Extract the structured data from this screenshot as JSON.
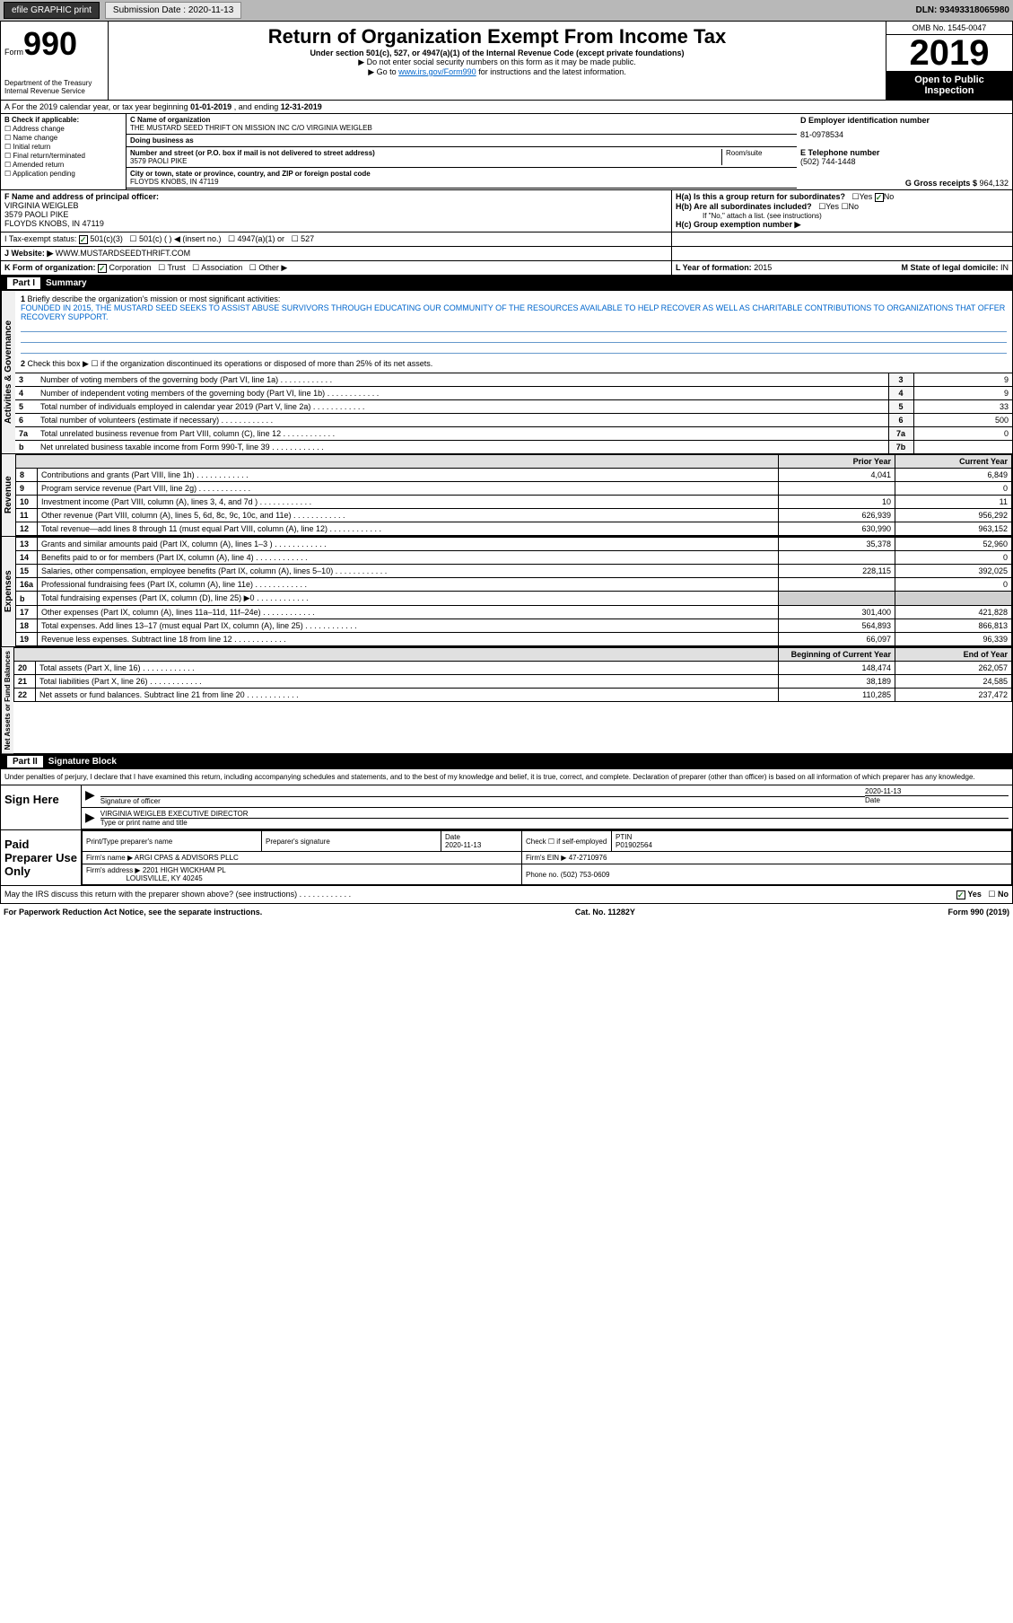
{
  "topbar": {
    "efile": "efile GRAPHIC print",
    "sub_label": "Submission Date : 2020-11-13",
    "dln": "DLN: 93493318065980"
  },
  "header": {
    "form_word": "Form",
    "form_num": "990",
    "title": "Return of Organization Exempt From Income Tax",
    "subtitle": "Under section 501(c), 527, or 4947(a)(1) of the Internal Revenue Code (except private foundations)",
    "arrow1": "▶ Do not enter social security numbers on this form as it may be made public.",
    "arrow2_pre": "▶ Go to ",
    "arrow2_link": "www.irs.gov/Form990",
    "arrow2_post": " for instructions and the latest information.",
    "omb": "OMB No. 1545-0047",
    "year": "2019",
    "open": "Open to Public Inspection",
    "dept": "Department of the Treasury\nInternal Revenue Service"
  },
  "period": {
    "text_pre": "A For the 2019 calendar year, or tax year beginning ",
    "begin": "01-01-2019",
    "mid": " , and ending ",
    "end": "12-31-2019"
  },
  "colB": {
    "header": "B Check if applicable:",
    "items": [
      "Address change",
      "Name change",
      "Initial return",
      "Final return/terminated",
      "Amended return",
      "Application pending"
    ]
  },
  "colC": {
    "name_lbl": "C Name of organization",
    "name": "THE MUSTARD SEED THRIFT ON MISSION INC C/O VIRGINIA WEIGLEB",
    "dba_lbl": "Doing business as",
    "addr_lbl": "Number and street (or P.O. box if mail is not delivered to street address)",
    "room": "Room/suite",
    "addr": "3579 PAOLI PIKE",
    "city_lbl": "City or town, state or province, country, and ZIP or foreign postal code",
    "city": "FLOYDS KNOBS, IN  47119"
  },
  "colD": {
    "d_lbl": "D Employer identification number",
    "ein": "81-0978534",
    "e_lbl": "E Telephone number",
    "phone": "(502) 744-1448",
    "g_lbl": "G Gross receipts $ ",
    "g_val": "964,132"
  },
  "rowF": {
    "f_lbl": "F Name and address of principal officer:",
    "officer": "VIRGINIA WEIGLEB\n3579 PAOLI PIKE\nFLOYDS KNOBS, IN  47119",
    "tax_lbl": "I Tax-exempt status:",
    "t501c3": "501(c)(3)",
    "t501c": "501(c) (  ) ◀ (insert no.)",
    "t4947": "4947(a)(1) or",
    "t527": "527",
    "web_lbl": "J Website: ▶",
    "web": "WWW.MUSTARDSEEDTHRIFT.COM",
    "ha_lbl": "H(a) Is this a group return for subordinates?",
    "hb_lbl": "H(b) Are all subordinates included?",
    "hb_note": "If \"No,\" attach a list. (see instructions)",
    "hc_lbl": "H(c) Group exemption number ▶",
    "yes": "Yes",
    "no": "No"
  },
  "rowK": {
    "k_lbl": "K Form of organization:",
    "corp": "Corporation",
    "trust": "Trust",
    "assoc": "Association",
    "other": "Other ▶",
    "l_lbl": "L Year of formation: ",
    "l_val": "2015",
    "m_lbl": "M State of legal domicile: ",
    "m_val": "IN"
  },
  "part1": {
    "label": "Part I",
    "title": "Summary"
  },
  "governance": {
    "side": "Activities & Governance",
    "q1": "Briefly describe the organization's mission or most significant activities:",
    "mission": "FOUNDED IN 2015, THE MUSTARD SEED SEEKS TO ASSIST ABUSE SURVIVORS THROUGH EDUCATING OUR COMMUNITY OF THE RESOURCES AVAILABLE TO HELP RECOVER AS WELL AS CHARITABLE CONTRIBUTIONS TO ORGANIZATIONS THAT OFFER RECOVERY SUPPORT.",
    "q2": "Check this box ▶ ☐ if the organization discontinued its operations or disposed of more than 25% of its net assets.",
    "rows": [
      {
        "n": "3",
        "t": "Number of voting members of the governing body (Part VI, line 1a)",
        "b": "3",
        "v": "9"
      },
      {
        "n": "4",
        "t": "Number of independent voting members of the governing body (Part VI, line 1b)",
        "b": "4",
        "v": "9"
      },
      {
        "n": "5",
        "t": "Total number of individuals employed in calendar year 2019 (Part V, line 2a)",
        "b": "5",
        "v": "33"
      },
      {
        "n": "6",
        "t": "Total number of volunteers (estimate if necessary)",
        "b": "6",
        "v": "500"
      },
      {
        "n": "7a",
        "t": "Total unrelated business revenue from Part VIII, column (C), line 12",
        "b": "7a",
        "v": "0"
      },
      {
        "n": "b",
        "t": "Net unrelated business taxable income from Form 990-T, line 39",
        "b": "7b",
        "v": ""
      }
    ]
  },
  "revenue": {
    "side": "Revenue",
    "prior": "Prior Year",
    "current": "Current Year",
    "rows": [
      {
        "n": "8",
        "t": "Contributions and grants (Part VIII, line 1h)",
        "p": "4,041",
        "c": "6,849"
      },
      {
        "n": "9",
        "t": "Program service revenue (Part VIII, line 2g)",
        "p": "",
        "c": "0"
      },
      {
        "n": "10",
        "t": "Investment income (Part VIII, column (A), lines 3, 4, and 7d )",
        "p": "10",
        "c": "11"
      },
      {
        "n": "11",
        "t": "Other revenue (Part VIII, column (A), lines 5, 6d, 8c, 9c, 10c, and 11e)",
        "p": "626,939",
        "c": "956,292"
      },
      {
        "n": "12",
        "t": "Total revenue—add lines 8 through 11 (must equal Part VIII, column (A), line 12)",
        "p": "630,990",
        "c": "963,152"
      }
    ]
  },
  "expenses": {
    "side": "Expenses",
    "rows": [
      {
        "n": "13",
        "t": "Grants and similar amounts paid (Part IX, column (A), lines 1–3 )",
        "p": "35,378",
        "c": "52,960"
      },
      {
        "n": "14",
        "t": "Benefits paid to or for members (Part IX, column (A), line 4)",
        "p": "",
        "c": "0"
      },
      {
        "n": "15",
        "t": "Salaries, other compensation, employee benefits (Part IX, column (A), lines 5–10)",
        "p": "228,115",
        "c": "392,025"
      },
      {
        "n": "16a",
        "t": "Professional fundraising fees (Part IX, column (A), line 11e)",
        "p": "",
        "c": "0"
      },
      {
        "n": "b",
        "t": "Total fundraising expenses (Part IX, column (D), line 25) ▶0",
        "p": "SHADE",
        "c": "SHADE"
      },
      {
        "n": "17",
        "t": "Other expenses (Part IX, column (A), lines 11a–11d, 11f–24e)",
        "p": "301,400",
        "c": "421,828"
      },
      {
        "n": "18",
        "t": "Total expenses. Add lines 13–17 (must equal Part IX, column (A), line 25)",
        "p": "564,893",
        "c": "866,813"
      },
      {
        "n": "19",
        "t": "Revenue less expenses. Subtract line 18 from line 12",
        "p": "66,097",
        "c": "96,339"
      }
    ]
  },
  "netassets": {
    "side": "Net Assets or Fund Balances",
    "begin": "Beginning of Current Year",
    "end": "End of Year",
    "rows": [
      {
        "n": "20",
        "t": "Total assets (Part X, line 16)",
        "p": "148,474",
        "c": "262,057"
      },
      {
        "n": "21",
        "t": "Total liabilities (Part X, line 26)",
        "p": "38,189",
        "c": "24,585"
      },
      {
        "n": "22",
        "t": "Net assets or fund balances. Subtract line 21 from line 20",
        "p": "110,285",
        "c": "237,472"
      }
    ]
  },
  "part2": {
    "label": "Part II",
    "title": "Signature Block"
  },
  "sig": {
    "decl": "Under penalties of perjury, I declare that I have examined this return, including accompanying schedules and statements, and to the best of my knowledge and belief, it is true, correct, and complete. Declaration of preparer (other than officer) is based on all information of which preparer has any knowledge.",
    "sign_here": "Sign Here",
    "sig_officer": "Signature of officer",
    "date_lbl": "Date",
    "date": "2020-11-13",
    "name": "VIRGINIA WEIGLEB EXECUTIVE DIRECTOR",
    "name_lbl": "Type or print name and title",
    "paid": "Paid Preparer Use Only",
    "prep_name_lbl": "Print/Type preparer's name",
    "prep_sig_lbl": "Preparer's signature",
    "prep_date": "2020-11-13",
    "check_lbl": "Check ☐ if self-employed",
    "ptin_lbl": "PTIN",
    "ptin": "P01902564",
    "firm_lbl": "Firm's name ▶",
    "firm": "ARGI CPAS & ADVISORS PLLC",
    "firm_ein_lbl": "Firm's EIN ▶",
    "firm_ein": "47-2710976",
    "firm_addr_lbl": "Firm's address ▶",
    "firm_addr": "2201 HIGH WICKHAM PL",
    "firm_city": "LOUISVILLE, KY  40245",
    "phone_lbl": "Phone no. ",
    "phone": "(502) 753-0609",
    "discuss": "May the IRS discuss this return with the preparer shown above? (see instructions)"
  },
  "footer": {
    "left": "For Paperwork Reduction Act Notice, see the separate instructions.",
    "mid": "Cat. No. 11282Y",
    "right": "Form 990 (2019)"
  }
}
